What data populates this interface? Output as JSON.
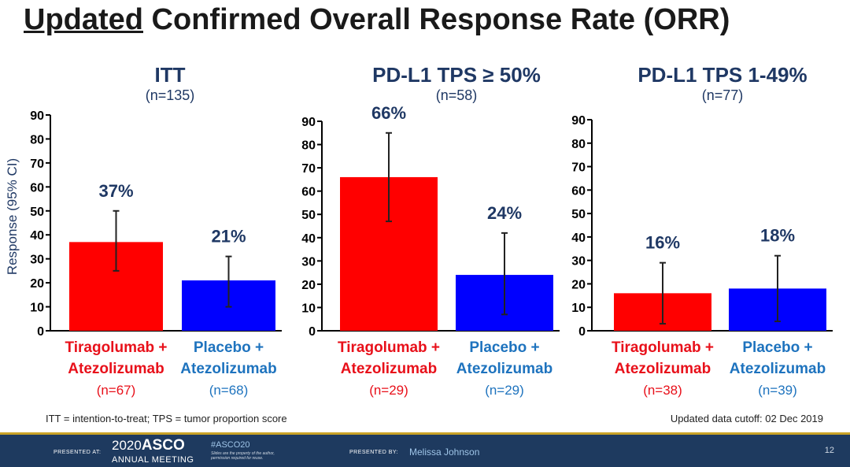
{
  "slide": {
    "title_underlined": "Updated",
    "title_rest": " Confirmed Overall Response Rate (ORR)",
    "ylabel": "Response (95% CI)",
    "footnote": "ITT = intention-to-treat; TPS = tumor proportion score",
    "cutoff": "Updated data cutoff: 02 Dec 2019"
  },
  "footer": {
    "presented_at": "PRESENTED AT:",
    "meeting_year": "2020",
    "meeting_name": "ASCO",
    "meeting_sub": "ANNUAL MEETING",
    "hashtag": "#ASCO20",
    "disclaimer_1": "Slides are the property of the author,",
    "disclaimer_2": "permission required for reuse.",
    "presented_by": "PRESENTED BY:",
    "presenter": "Melissa Johnson",
    "page": "12"
  },
  "colors": {
    "tiragolumab": "#ff0000",
    "placebo": "#0000ff",
    "tiragolumab_label": "#e8101a",
    "placebo_label": "#1e73be",
    "navy": "#1f3864"
  },
  "chart_data": [
    {
      "type": "bar",
      "title": "ITT",
      "subtitle": "(n=135)",
      "ylabel": "Response (95% CI)",
      "ylim": [
        0,
        90
      ],
      "yticks": [
        0,
        10,
        20,
        30,
        40,
        50,
        60,
        70,
        80,
        90
      ],
      "categories": [
        "Tiragolumab + Atezolizumab",
        "Placebo + Atezolizumab"
      ],
      "values": [
        37,
        21
      ],
      "value_labels": [
        "37%",
        "21%"
      ],
      "ci_low": [
        25,
        10
      ],
      "ci_high": [
        50,
        31
      ],
      "category_lines": [
        [
          "Tiragolumab +",
          "Atezolizumab",
          "(n=67)"
        ],
        [
          "Placebo +",
          "Atezolizumab",
          "(n=68)"
        ]
      ]
    },
    {
      "type": "bar",
      "title": "PD-L1 TPS ≥ 50%",
      "subtitle": "(n=58)",
      "ylim": [
        0,
        90
      ],
      "yticks": [
        0,
        10,
        20,
        30,
        40,
        50,
        60,
        70,
        80,
        90
      ],
      "categories": [
        "Tiragolumab + Atezolizumab",
        "Placebo + Atezolizumab"
      ],
      "values": [
        66,
        24
      ],
      "value_labels": [
        "66%",
        "24%"
      ],
      "ci_low": [
        47,
        7
      ],
      "ci_high": [
        85,
        42
      ],
      "category_lines": [
        [
          "Tiragolumab +",
          "Atezolizumab",
          "(n=29)"
        ],
        [
          "Placebo +",
          "Atezolizumab",
          "(n=29)"
        ]
      ]
    },
    {
      "type": "bar",
      "title": "PD-L1 TPS 1-49%",
      "subtitle": "(n=77)",
      "ylim": [
        0,
        90
      ],
      "yticks": [
        0,
        10,
        20,
        30,
        40,
        50,
        60,
        70,
        80,
        90
      ],
      "categories": [
        "Tiragolumab + Atezolizumab",
        "Placebo + Atezolizumab"
      ],
      "values": [
        16,
        18
      ],
      "value_labels": [
        "16%",
        "18%"
      ],
      "ci_low": [
        3,
        4
      ],
      "ci_high": [
        29,
        32
      ],
      "category_lines": [
        [
          "Tiragolumab +",
          "Atezolizumab",
          "(n=38)"
        ],
        [
          "Placebo +",
          "Atezolizumab",
          "(n=39)"
        ]
      ]
    }
  ]
}
